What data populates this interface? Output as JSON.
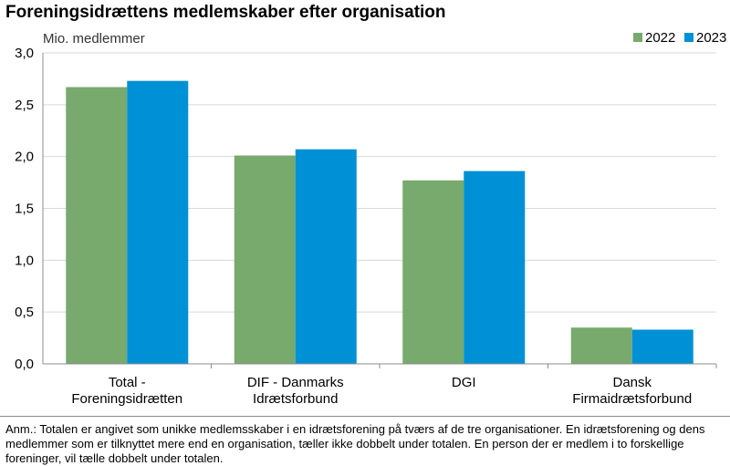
{
  "title": "Foreningsidrættens medlemskaber efter organisation",
  "note": "Anm.: Totalen er angivet som unikke medlemsskaber i en idrætsforening på tværs af de tre organisationer. En idrætsforening og dens medlemmer som er tilknyttet mere end en organisation, tæller ikke dobbelt under totalen. En person der er medlem i to forskellige foreninger, vil tælle dobbelt under totalen.",
  "chart_data": {
    "type": "bar",
    "title": "Foreningsidrættens medlemskaber efter organisation",
    "ylabel": "Mio. medlemmer",
    "xlabel": "",
    "ylim": [
      0,
      3.0
    ],
    "yticks": [
      "0,0",
      "0,5",
      "1,0",
      "1,5",
      "2,0",
      "2,5",
      "3,0"
    ],
    "ytick_values": [
      0,
      0.5,
      1.0,
      1.5,
      2.0,
      2.5,
      3.0
    ],
    "grid": true,
    "legend_position": "top-right",
    "categories": [
      [
        "Total -",
        "Foreningsidrætten"
      ],
      [
        "DIF - Danmarks",
        "Idrætsforbund"
      ],
      [
        "DGI"
      ],
      [
        "Dansk",
        "Firmaidrætsforbund"
      ]
    ],
    "series": [
      {
        "name": "2022",
        "color": "#78a96d",
        "values": [
          2.67,
          2.01,
          1.77,
          0.35
        ]
      },
      {
        "name": "2023",
        "color": "#0090d5",
        "values": [
          2.73,
          2.07,
          1.86,
          0.33
        ]
      }
    ]
  }
}
